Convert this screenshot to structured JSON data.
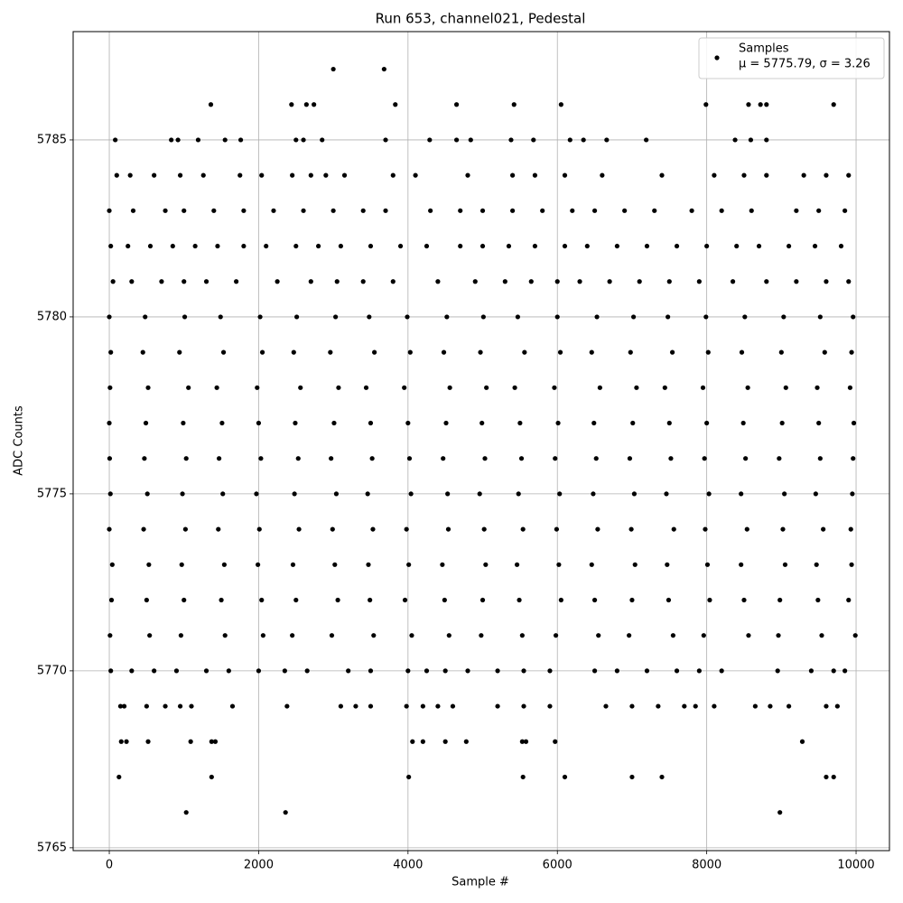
{
  "chart_data": {
    "type": "scatter",
    "title": "Run 653, channel021, Pedestal",
    "xlabel": "Sample #",
    "ylabel": "ADC Counts",
    "xlim": [
      -484,
      10447
    ],
    "ylim": [
      5764.92,
      5788.06
    ],
    "xticks": [
      0,
      2000,
      4000,
      6000,
      8000,
      10000
    ],
    "yticks": [
      5765,
      5770,
      5775,
      5780,
      5785
    ],
    "grid": true,
    "legend": "upper right",
    "legend_note": "μ = 5775.79, σ = 3.26",
    "series": [
      {
        "name": "Samples",
        "color": "#000000",
        "x": [
          3000,
          3680,
          1360,
          2440,
          2640,
          2740,
          3830,
          4650,
          5420,
          6050,
          7990,
          8560,
          8720,
          8800,
          9700,
          80,
          830,
          920,
          1190,
          1550,
          1760,
          2500,
          2600,
          2850,
          3700,
          4290,
          4650,
          4840,
          5380,
          5680,
          6170,
          6350,
          6660,
          7190,
          8380,
          8590,
          8800,
          100,
          280,
          600,
          950,
          1260,
          1750,
          2040,
          2450,
          2700,
          2900,
          3150,
          3800,
          4100,
          4800,
          5400,
          5700,
          6100,
          6600,
          7400,
          8100,
          8500,
          8800,
          9300,
          9600,
          9900,
          0,
          320,
          750,
          1000,
          1400,
          1800,
          2200,
          2600,
          3000,
          3400,
          3700,
          4300,
          4700,
          5000,
          5400,
          5800,
          6200,
          6500,
          6900,
          7300,
          7800,
          8200,
          8600,
          9200,
          9500,
          9850,
          20,
          250,
          550,
          850,
          1150,
          1450,
          1800,
          2100,
          2500,
          2800,
          3100,
          3500,
          3900,
          4250,
          4700,
          5000,
          5350,
          5700,
          6100,
          6400,
          6800,
          7200,
          7600,
          8000,
          8400,
          8700,
          9100,
          9450,
          9800,
          50,
          300,
          700,
          1000,
          1300,
          1700,
          2250,
          2700,
          3050,
          3400,
          3800,
          4400,
          4900,
          5300,
          5650,
          6000,
          6300,
          6700,
          7100,
          7500,
          7900,
          8350,
          8800,
          9200,
          9600,
          9900,
          0,
          480,
          1010,
          1490,
          2020,
          2510,
          3030,
          3480,
          3990,
          4520,
          5010,
          5470,
          6000,
          6530,
          7020,
          7480,
          7990,
          8510,
          9030,
          9520,
          9960,
          20,
          450,
          940,
          1530,
          2050,
          2470,
          2960,
          3550,
          4030,
          4480,
          4970,
          5560,
          6040,
          6460,
          6980,
          7540,
          8020,
          8470,
          9000,
          9580,
          9940,
          10,
          520,
          1060,
          1440,
          1980,
          2560,
          3070,
          3440,
          3950,
          4560,
          5050,
          5430,
          5960,
          6570,
          7060,
          7440,
          7950,
          8550,
          9060,
          9480,
          9920,
          0,
          490,
          990,
          1510,
          2000,
          2490,
          3010,
          3500,
          4000,
          4510,
          4990,
          5500,
          6010,
          6490,
          7010,
          7500,
          8000,
          8490,
          9010,
          9500,
          9970,
          5,
          470,
          1030,
          1470,
          2030,
          2530,
          2970,
          3520,
          4020,
          4470,
          5030,
          5520,
          5970,
          6520,
          6970,
          7520,
          7970,
          8520,
          8970,
          9520,
          9960,
          15,
          510,
          980,
          1520,
          1970,
          2480,
          3040,
          3460,
          4040,
          4530,
          4960,
          5480,
          6030,
          6480,
          7030,
          7460,
          8030,
          8460,
          9040,
          9460,
          9950,
          0,
          460,
          1020,
          1460,
          2010,
          2540,
          2990,
          3530,
          3980,
          4540,
          5020,
          5540,
          5990,
          6540,
          6990,
          7560,
          7980,
          8540,
          9020,
          9560,
          9930,
          40,
          530,
          970,
          1540,
          1990,
          2460,
          3020,
          3470,
          4010,
          4460,
          5040,
          5460,
          6020,
          6460,
          7040,
          7470,
          8010,
          8460,
          9050,
          9470,
          9940,
          30,
          500,
          1000,
          1500,
          2040,
          2500,
          3060,
          3490,
          3960,
          4490,
          5000,
          5490,
          6050,
          6500,
          7000,
          7490,
          8040,
          8500,
          8980,
          9490,
          9900,
          10,
          540,
          960,
          1550,
          2060,
          2450,
          2980,
          3540,
          4050,
          4550,
          4980,
          5530,
          5980,
          6550,
          6960,
          7550,
          7960,
          8560,
          8960,
          9540,
          9990,
          20,
          300,
          600,
          900,
          1300,
          1600,
          2000,
          2350,
          2650,
          3200,
          3500,
          4000,
          4250,
          4500,
          4800,
          5200,
          5550,
          5900,
          6500,
          6800,
          7200,
          7600,
          7900,
          8200,
          8950,
          9400,
          9700,
          9850,
          150,
          200,
          500,
          750,
          950,
          1100,
          1650,
          2380,
          3100,
          3300,
          3500,
          3980,
          4200,
          4400,
          4600,
          5200,
          5550,
          5900,
          6650,
          7000,
          7350,
          7700,
          7850,
          8100,
          8650,
          8850,
          9100,
          9600,
          9750,
          160,
          230,
          520,
          1090,
          1370,
          1420,
          4060,
          4200,
          4500,
          4780,
          5530,
          5580,
          5970,
          9280,
          130,
          1370,
          4010,
          5540,
          6100,
          7000,
          7400,
          9600,
          9700,
          1030,
          2360,
          8980
        ],
        "values": [
          5787,
          5787,
          5786,
          5786,
          5786,
          5786,
          5786,
          5786,
          5786,
          5786,
          5786,
          5786,
          5786,
          5786,
          5786,
          5785,
          5785,
          5785,
          5785,
          5785,
          5785,
          5785,
          5785,
          5785,
          5785,
          5785,
          5785,
          5785,
          5785,
          5785,
          5785,
          5785,
          5785,
          5785,
          5785,
          5785,
          5785,
          5784,
          5784,
          5784,
          5784,
          5784,
          5784,
          5784,
          5784,
          5784,
          5784,
          5784,
          5784,
          5784,
          5784,
          5784,
          5784,
          5784,
          5784,
          5784,
          5784,
          5784,
          5784,
          5784,
          5784,
          5784,
          5783,
          5783,
          5783,
          5783,
          5783,
          5783,
          5783,
          5783,
          5783,
          5783,
          5783,
          5783,
          5783,
          5783,
          5783,
          5783,
          5783,
          5783,
          5783,
          5783,
          5783,
          5783,
          5783,
          5783,
          5783,
          5783,
          5782,
          5782,
          5782,
          5782,
          5782,
          5782,
          5782,
          5782,
          5782,
          5782,
          5782,
          5782,
          5782,
          5782,
          5782,
          5782,
          5782,
          5782,
          5782,
          5782,
          5782,
          5782,
          5782,
          5782,
          5782,
          5782,
          5782,
          5782,
          5782,
          5781,
          5781,
          5781,
          5781,
          5781,
          5781,
          5781,
          5781,
          5781,
          5781,
          5781,
          5781,
          5781,
          5781,
          5781,
          5781,
          5781,
          5781,
          5781,
          5781,
          5781,
          5781,
          5781,
          5781,
          5781,
          5781,
          5780,
          5780,
          5780,
          5780,
          5780,
          5780,
          5780,
          5780,
          5780,
          5780,
          5780,
          5780,
          5780,
          5780,
          5780,
          5780,
          5780,
          5780,
          5780,
          5780,
          5780,
          5779,
          5779,
          5779,
          5779,
          5779,
          5779,
          5779,
          5779,
          5779,
          5779,
          5779,
          5779,
          5779,
          5779,
          5779,
          5779,
          5779,
          5779,
          5779,
          5779,
          5779,
          5778,
          5778,
          5778,
          5778,
          5778,
          5778,
          5778,
          5778,
          5778,
          5778,
          5778,
          5778,
          5778,
          5778,
          5778,
          5778,
          5778,
          5778,
          5778,
          5778,
          5778,
          5777,
          5777,
          5777,
          5777,
          5777,
          5777,
          5777,
          5777,
          5777,
          5777,
          5777,
          5777,
          5777,
          5777,
          5777,
          5777,
          5777,
          5777,
          5777,
          5777,
          5777,
          5776,
          5776,
          5776,
          5776,
          5776,
          5776,
          5776,
          5776,
          5776,
          5776,
          5776,
          5776,
          5776,
          5776,
          5776,
          5776,
          5776,
          5776,
          5776,
          5776,
          5776,
          5775,
          5775,
          5775,
          5775,
          5775,
          5775,
          5775,
          5775,
          5775,
          5775,
          5775,
          5775,
          5775,
          5775,
          5775,
          5775,
          5775,
          5775,
          5775,
          5775,
          5775,
          5774,
          5774,
          5774,
          5774,
          5774,
          5774,
          5774,
          5774,
          5774,
          5774,
          5774,
          5774,
          5774,
          5774,
          5774,
          5774,
          5774,
          5774,
          5774,
          5774,
          5774,
          5773,
          5773,
          5773,
          5773,
          5773,
          5773,
          5773,
          5773,
          5773,
          5773,
          5773,
          5773,
          5773,
          5773,
          5773,
          5773,
          5773,
          5773,
          5773,
          5773,
          5773,
          5772,
          5772,
          5772,
          5772,
          5772,
          5772,
          5772,
          5772,
          5772,
          5772,
          5772,
          5772,
          5772,
          5772,
          5772,
          5772,
          5772,
          5772,
          5772,
          5772,
          5772,
          5771,
          5771,
          5771,
          5771,
          5771,
          5771,
          5771,
          5771,
          5771,
          5771,
          5771,
          5771,
          5771,
          5771,
          5771,
          5771,
          5771,
          5771,
          5771,
          5771,
          5771,
          5770,
          5770,
          5770,
          5770,
          5770,
          5770,
          5770,
          5770,
          5770,
          5770,
          5770,
          5770,
          5770,
          5770,
          5770,
          5770,
          5770,
          5770,
          5770,
          5770,
          5770,
          5770,
          5770,
          5770,
          5770,
          5770,
          5770,
          5770,
          5769,
          5769,
          5769,
          5769,
          5769,
          5769,
          5769,
          5769,
          5769,
          5769,
          5769,
          5769,
          5769,
          5769,
          5769,
          5769,
          5769,
          5769,
          5769,
          5769,
          5769,
          5769,
          5769,
          5769,
          5769,
          5769,
          5769,
          5769,
          5769,
          5768,
          5768,
          5768,
          5768,
          5768,
          5768,
          5768,
          5768,
          5768,
          5768,
          5768,
          5768,
          5768,
          5768,
          5767,
          5767,
          5767,
          5767,
          5767,
          5767,
          5767,
          5767,
          5767,
          5766,
          5766,
          5766
        ]
      }
    ]
  }
}
